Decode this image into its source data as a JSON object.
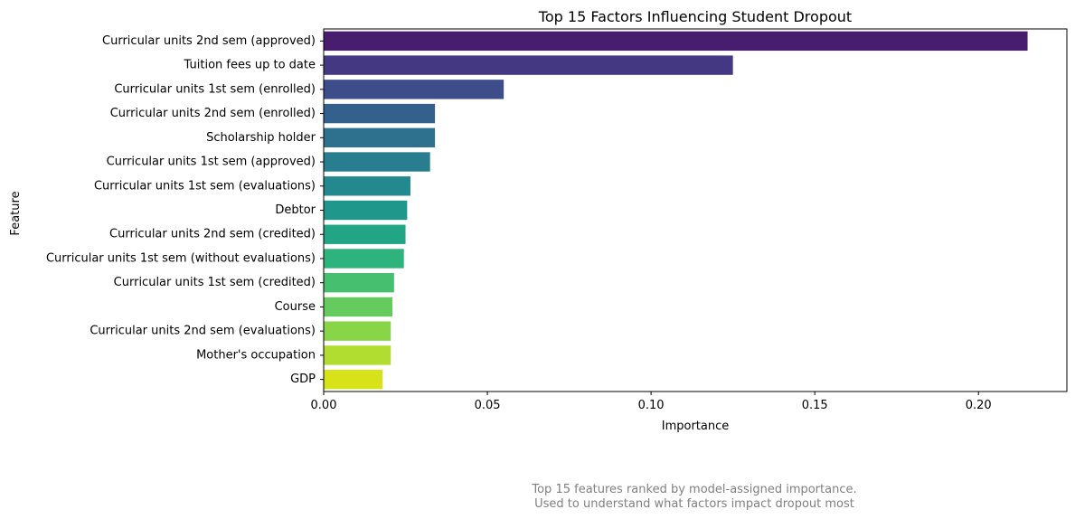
{
  "chart_data": {
    "type": "bar",
    "orientation": "horizontal",
    "title": "Top 15 Factors Influencing Student Dropout",
    "xlabel": "Importance",
    "ylabel": "Feature",
    "xlim": [
      0,
      0.227
    ],
    "xticks": [
      0.0,
      0.05,
      0.1,
      0.15,
      0.2
    ],
    "xtick_labels": [
      "0.00",
      "0.05",
      "0.10",
      "0.15",
      "0.20"
    ],
    "grid": false,
    "colormap": "viridis",
    "categories": [
      "Curricular units 2nd sem (approved)",
      "Tuition fees up to date",
      "Curricular units 1st sem (enrolled)",
      "Curricular units 2nd sem (enrolled)",
      "Scholarship holder",
      "Curricular units 1st sem (approved)",
      "Curricular units 1st sem (evaluations)",
      "Debtor",
      "Curricular units 2nd sem (credited)",
      "Curricular units 1st sem (without evaluations)",
      "Curricular units 1st sem (credited)",
      "Course",
      "Curricular units 2nd sem (evaluations)",
      "Mother's occupation",
      "GDP"
    ],
    "values": [
      0.215,
      0.125,
      0.055,
      0.034,
      0.034,
      0.0325,
      0.0265,
      0.0255,
      0.025,
      0.0245,
      0.0215,
      0.021,
      0.0205,
      0.0205,
      0.018
    ],
    "colors": [
      "#481c6e",
      "#453882",
      "#3d4d8a",
      "#34608d",
      "#2d718e",
      "#287d8e",
      "#23898e",
      "#1f978b",
      "#21a585",
      "#2eb37c",
      "#46c06f",
      "#65cb5e",
      "#89d548",
      "#b0dd2f",
      "#d8e219"
    ]
  },
  "caption": {
    "line1": "Top 15 features ranked by model-assigned importance.",
    "line2": "Used to understand what factors impact dropout most"
  }
}
